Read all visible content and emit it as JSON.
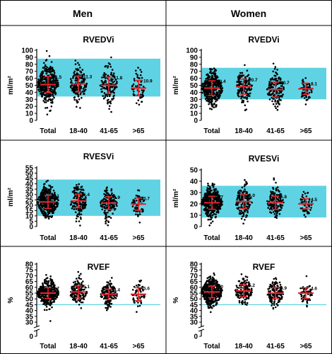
{
  "headers": {
    "left": "Men",
    "right": "Women"
  },
  "colors": {
    "band": "#5fd3e3",
    "dots": "#000000",
    "summary": "#e8252e",
    "border": "#000000"
  },
  "chart_data": [
    {
      "type": "scatter",
      "id": "men-rvedvi",
      "title": "RVEDVi",
      "ylabel": "ml/m²",
      "ylim": [
        0,
        100
      ],
      "yticks": [
        0,
        10,
        20,
        30,
        40,
        50,
        60,
        70,
        80,
        90,
        100
      ],
      "categories": [
        "Total",
        "18-40",
        "41-65",
        ">65"
      ],
      "means": [
        51,
        52,
        50,
        46
      ],
      "sds": [
        11.5,
        11.3,
        11.8,
        10.9
      ],
      "sd_labels": [
        "11.5",
        "11.3",
        "11.8",
        "10.9"
      ],
      "reference_range": [
        34,
        88
      ]
    },
    {
      "type": "scatter",
      "id": "women-rvedvi",
      "title": "RVEDVi",
      "ylabel": "ml/m²",
      "ylim": [
        0,
        100
      ],
      "yticks": [
        0,
        10,
        20,
        30,
        40,
        50,
        60,
        70,
        80,
        90,
        100
      ],
      "categories": [
        "Total",
        "18-40",
        "41-65",
        ">65"
      ],
      "means": [
        46,
        48,
        44,
        45
      ],
      "sds": [
        10.4,
        10.7,
        10.7,
        8.1
      ],
      "sd_labels": [
        "10.4",
        "10.7",
        "10.7",
        "8.1"
      ],
      "reference_range": [
        30,
        75
      ]
    },
    {
      "type": "scatter",
      "id": "men-rvesvi",
      "title": "RVESVi",
      "ylabel": "ml/m²",
      "ylim": [
        0,
        55
      ],
      "yticks": [
        0,
        5,
        10,
        15,
        20,
        25,
        30,
        35,
        40,
        45,
        50,
        55
      ],
      "categories": [
        "Total",
        "18-40",
        "41-65",
        ">65"
      ],
      "means": [
        23,
        24,
        22,
        21
      ],
      "sds": [
        6.1,
        6.4,
        5.9,
        5.7
      ],
      "sd_labels": [
        "6.1",
        "6.4",
        "5.9",
        "5.7"
      ],
      "reference_range": [
        10,
        44
      ]
    },
    {
      "type": "scatter",
      "id": "women-rvesvi",
      "title": "RVESVi",
      "ylabel": "ml/m²",
      "ylim": [
        0,
        50
      ],
      "yticks": [
        0,
        10,
        20,
        30,
        40,
        50
      ],
      "categories": [
        "Total",
        "18-40",
        "41-65",
        ">65"
      ],
      "means": [
        21,
        22,
        21,
        20
      ],
      "sds": [
        5.7,
        6.0,
        5.8,
        4.5
      ],
      "sd_labels": [
        "5.7",
        "6.0",
        "5.8",
        "4.5"
      ],
      "reference_range": [
        8,
        36
      ]
    },
    {
      "type": "scatter",
      "id": "men-rvef",
      "title": "RVEF",
      "ylabel": "%",
      "ylim": [
        0,
        80
      ],
      "yticks": [
        0,
        30,
        35,
        40,
        45,
        50,
        55,
        60,
        65,
        70,
        75,
        80
      ],
      "axis_break": [
        0,
        30
      ],
      "categories": [
        "Total",
        "18-40",
        "41-65",
        ">65"
      ],
      "means": [
        55,
        56,
        54,
        54
      ],
      "sds": [
        4.7,
        5.1,
        4.4,
        5.6
      ],
      "sd_labels": [
        "4.7",
        "5.1",
        "4.4",
        "5.6"
      ],
      "reference_range": [
        45,
        80
      ]
    },
    {
      "type": "scatter",
      "id": "women-rvef",
      "title": "RVEF",
      "ylabel": "%",
      "ylim": [
        0,
        80
      ],
      "yticks": [
        0,
        30,
        35,
        40,
        45,
        50,
        55,
        60,
        65,
        70,
        75,
        80
      ],
      "axis_break": [
        0,
        30
      ],
      "categories": [
        "Total",
        "18-40",
        "41-65",
        ">65"
      ],
      "means": [
        56,
        57,
        55,
        55
      ],
      "sds": [
        5.0,
        5.2,
        4.9,
        4.6
      ],
      "sd_labels": [
        "5.0",
        "5.2",
        "4.9",
        "4.6"
      ],
      "reference_range": [
        45,
        80
      ]
    }
  ]
}
